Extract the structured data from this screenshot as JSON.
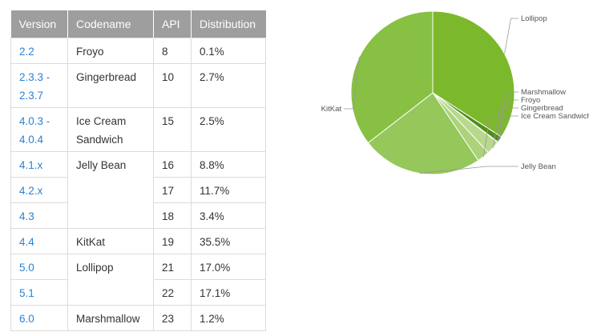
{
  "table": {
    "headers": [
      "Version",
      "Codename",
      "API",
      "Distribution"
    ],
    "rows": [
      {
        "version": "2.2",
        "codename": "Froyo",
        "api": "8",
        "distribution": "0.1%"
      },
      {
        "version": "2.3.3 -\n2.3.7",
        "codename": "Gingerbread",
        "api": "10",
        "distribution": "2.7%"
      },
      {
        "version": "4.0.3 -\n4.0.4",
        "codename": "Ice Cream\nSandwich",
        "api": "15",
        "distribution": "2.5%"
      },
      {
        "version": "4.1.x",
        "codename": "Jelly Bean",
        "api": "16",
        "distribution": "8.8%"
      },
      {
        "version": "4.2.x",
        "codename": "",
        "api": "17",
        "distribution": "11.7%"
      },
      {
        "version": "4.3",
        "codename": "",
        "api": "18",
        "distribution": "3.4%"
      },
      {
        "version": "4.4",
        "codename": "KitKat",
        "api": "19",
        "distribution": "35.5%"
      },
      {
        "version": "5.0",
        "codename": "Lollipop",
        "api": "21",
        "distribution": "17.0%"
      },
      {
        "version": "5.1",
        "codename": "",
        "api": "22",
        "distribution": "17.1%"
      },
      {
        "version": "6.0",
        "codename": "Marshmallow",
        "api": "23",
        "distribution": "1.2%"
      }
    ]
  },
  "colors": {
    "header_bg": "#9e9e9e",
    "link": "#2b82d3",
    "border": "#dcdcdc"
  },
  "chart_data": {
    "type": "pie",
    "start_at": "top, clockwise",
    "slices": [
      {
        "label": "Lollipop",
        "value": 34.1,
        "color": "#7cb82c"
      },
      {
        "label": "Marshmallow",
        "value": 1.2,
        "color": "#4f8f19"
      },
      {
        "label": "Froyo",
        "value": 0.1,
        "color": "#c3df9e"
      },
      {
        "label": "Gingerbread",
        "value": 2.7,
        "color": "#b8d98d"
      },
      {
        "label": "Ice Cream Sandwich",
        "value": 2.5,
        "color": "#acd37b"
      },
      {
        "label": "Jelly Bean",
        "value": 23.9,
        "color": "#95c75a"
      },
      {
        "label": "KitKat",
        "value": 35.5,
        "color": "#87c043"
      }
    ]
  }
}
